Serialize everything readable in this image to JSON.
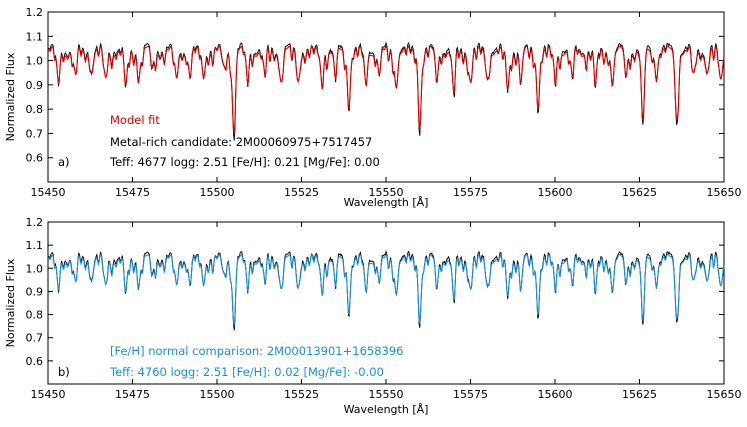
{
  "chart_data": [
    {
      "type": "line",
      "panel_label": "a)",
      "xlabel": "Wavelength [Å]",
      "ylabel": "Normalized Flux",
      "xlim": [
        15450,
        15650
      ],
      "ylim": [
        0.5,
        1.2
      ],
      "x_ticks": [
        15450,
        15475,
        15500,
        15525,
        15550,
        15575,
        15600,
        15625,
        15650
      ],
      "y_ticks": [
        0.6,
        0.7,
        0.8,
        0.9,
        1.0,
        1.1,
        1.2
      ],
      "annotations": [
        {
          "text": "Model fit",
          "color": "#dd0000"
        },
        {
          "text": "Metal-rich candidate: 2M00060975+7517457",
          "color": "#000000"
        },
        {
          "text": "Teff: 4677  logg: 2.51  [Fe/H]:  0.21  [Mg/Fe]:  0.00",
          "color": "#000000"
        }
      ],
      "series": [
        {
          "color": "#000000",
          "style": "observed"
        },
        {
          "color": "#dd0000",
          "style": "model"
        }
      ],
      "lines": [
        {
          "x": 15453,
          "depth": 0.12
        },
        {
          "x": 15458,
          "depth": 0.1
        },
        {
          "x": 15463,
          "depth": 0.08
        },
        {
          "x": 15467,
          "depth": 0.12
        },
        {
          "x": 15473,
          "depth": 0.16
        },
        {
          "x": 15477,
          "depth": 0.08
        },
        {
          "x": 15481,
          "depth": 0.07
        },
        {
          "x": 15488,
          "depth": 0.12
        },
        {
          "x": 15492,
          "depth": 0.1
        },
        {
          "x": 15496,
          "depth": 0.1
        },
        {
          "x": 15502,
          "depth": 0.07
        },
        {
          "x": 15505,
          "depth": 0.32
        },
        {
          "x": 15509,
          "depth": 0.1
        },
        {
          "x": 15514,
          "depth": 0.08
        },
        {
          "x": 15519,
          "depth": 0.12
        },
        {
          "x": 15524,
          "depth": 0.12
        },
        {
          "x": 15531,
          "depth": 0.1
        },
        {
          "x": 15535,
          "depth": 0.1
        },
        {
          "x": 15539,
          "depth": 0.2
        },
        {
          "x": 15544,
          "depth": 0.13
        },
        {
          "x": 15548,
          "depth": 0.09
        },
        {
          "x": 15553,
          "depth": 0.13
        },
        {
          "x": 15560,
          "depth": 0.28
        },
        {
          "x": 15565,
          "depth": 0.11
        },
        {
          "x": 15570,
          "depth": 0.16
        },
        {
          "x": 15575,
          "depth": 0.12
        },
        {
          "x": 15580,
          "depth": 0.11
        },
        {
          "x": 15586,
          "depth": 0.16
        },
        {
          "x": 15590,
          "depth": 0.11
        },
        {
          "x": 15595,
          "depth": 0.2
        },
        {
          "x": 15600,
          "depth": 0.09
        },
        {
          "x": 15605,
          "depth": 0.1
        },
        {
          "x": 15612,
          "depth": 0.13
        },
        {
          "x": 15617,
          "depth": 0.12
        },
        {
          "x": 15621,
          "depth": 0.09
        },
        {
          "x": 15626,
          "depth": 0.32
        },
        {
          "x": 15630,
          "depth": 0.08
        },
        {
          "x": 15636,
          "depth": 0.28
        },
        {
          "x": 15641,
          "depth": 0.11
        },
        {
          "x": 15645,
          "depth": 0.09
        },
        {
          "x": 15649,
          "depth": 0.12
        }
      ]
    },
    {
      "type": "line",
      "panel_label": "b)",
      "xlabel": "Wavelength [Å]",
      "ylabel": "Normalized Flux",
      "xlim": [
        15450,
        15650
      ],
      "ylim": [
        0.5,
        1.2
      ],
      "x_ticks": [
        15450,
        15475,
        15500,
        15525,
        15550,
        15575,
        15600,
        15625,
        15650
      ],
      "y_ticks": [
        0.6,
        0.7,
        0.8,
        0.9,
        1.0,
        1.1,
        1.2
      ],
      "annotations": [
        {
          "text": "[Fe/H] normal comparison: 2M00013901+1658396",
          "color": "#1a8fe0"
        },
        {
          "text": "Teff: 4760  logg: 2.51  [Fe/H]:  0.02  [Mg/Fe]: -0.00",
          "color": "#1a8fe0"
        }
      ],
      "series": [
        {
          "color": "#000000",
          "style": "observed"
        },
        {
          "color": "#1a8fe0",
          "style": "comparison"
        }
      ],
      "lines": [
        {
          "x": 15453,
          "depth": 0.12
        },
        {
          "x": 15458,
          "depth": 0.1
        },
        {
          "x": 15463,
          "depth": 0.08
        },
        {
          "x": 15467,
          "depth": 0.12
        },
        {
          "x": 15473,
          "depth": 0.16
        },
        {
          "x": 15477,
          "depth": 0.08
        },
        {
          "x": 15481,
          "depth": 0.07
        },
        {
          "x": 15488,
          "depth": 0.12
        },
        {
          "x": 15492,
          "depth": 0.1
        },
        {
          "x": 15496,
          "depth": 0.1
        },
        {
          "x": 15502,
          "depth": 0.07
        },
        {
          "x": 15505,
          "depth": 0.26
        },
        {
          "x": 15509,
          "depth": 0.1
        },
        {
          "x": 15514,
          "depth": 0.08
        },
        {
          "x": 15519,
          "depth": 0.12
        },
        {
          "x": 15524,
          "depth": 0.12
        },
        {
          "x": 15531,
          "depth": 0.1
        },
        {
          "x": 15535,
          "depth": 0.1
        },
        {
          "x": 15539,
          "depth": 0.2
        },
        {
          "x": 15544,
          "depth": 0.13
        },
        {
          "x": 15548,
          "depth": 0.09
        },
        {
          "x": 15553,
          "depth": 0.13
        },
        {
          "x": 15560,
          "depth": 0.23
        },
        {
          "x": 15565,
          "depth": 0.11
        },
        {
          "x": 15570,
          "depth": 0.16
        },
        {
          "x": 15575,
          "depth": 0.12
        },
        {
          "x": 15580,
          "depth": 0.11
        },
        {
          "x": 15586,
          "depth": 0.16
        },
        {
          "x": 15590,
          "depth": 0.11
        },
        {
          "x": 15595,
          "depth": 0.2
        },
        {
          "x": 15600,
          "depth": 0.09
        },
        {
          "x": 15605,
          "depth": 0.1
        },
        {
          "x": 15612,
          "depth": 0.13
        },
        {
          "x": 15617,
          "depth": 0.12
        },
        {
          "x": 15621,
          "depth": 0.09
        },
        {
          "x": 15626,
          "depth": 0.3
        },
        {
          "x": 15630,
          "depth": 0.08
        },
        {
          "x": 15636,
          "depth": 0.25
        },
        {
          "x": 15641,
          "depth": 0.11
        },
        {
          "x": 15645,
          "depth": 0.09
        },
        {
          "x": 15649,
          "depth": 0.12
        }
      ]
    }
  ]
}
